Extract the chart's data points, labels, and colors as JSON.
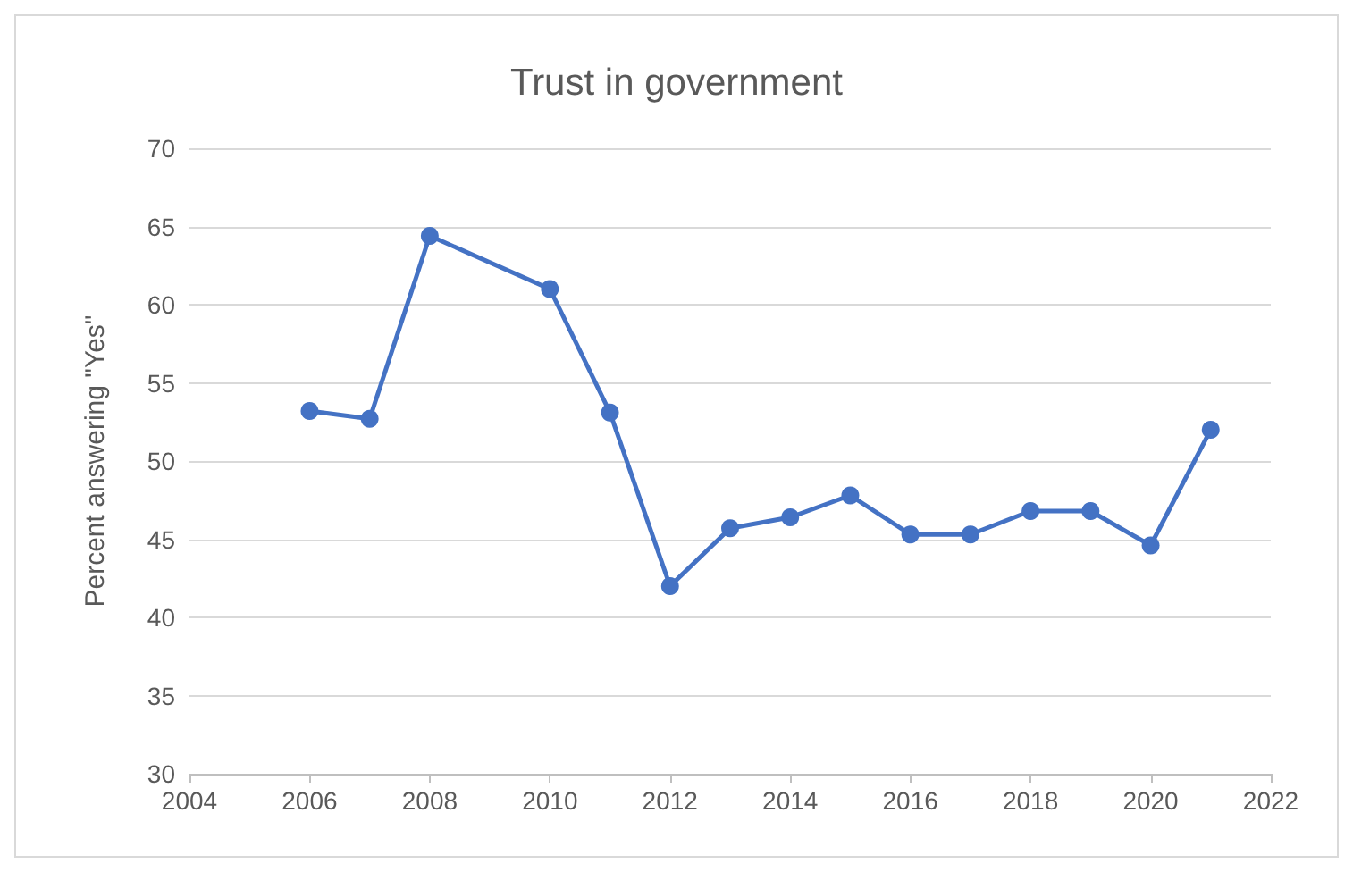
{
  "chart_data": {
    "type": "line",
    "title": "Trust in government",
    "ylabel": "Percent answering \"Yes\"",
    "x": [
      2006,
      2007,
      2008,
      2010,
      2011,
      2012,
      2013,
      2014,
      2015,
      2016,
      2017,
      2018,
      2019,
      2020,
      2021
    ],
    "series": [
      {
        "color": "#4472c4",
        "values": [
          53.2,
          52.7,
          64.4,
          61,
          53.1,
          42,
          45.7,
          46.4,
          47.8,
          45.3,
          45.3,
          46.8,
          46.8,
          44.6,
          52
        ]
      }
    ],
    "xlim": [
      2004,
      2022
    ],
    "xticks": [
      2004,
      2006,
      2008,
      2010,
      2012,
      2014,
      2016,
      2018,
      2020,
      2022
    ],
    "ylim": [
      30,
      70
    ],
    "yticks": [
      30,
      35,
      40,
      45,
      50,
      55,
      60,
      65,
      70
    ],
    "grid": "y",
    "marker": "circle",
    "line_style": "solid"
  }
}
